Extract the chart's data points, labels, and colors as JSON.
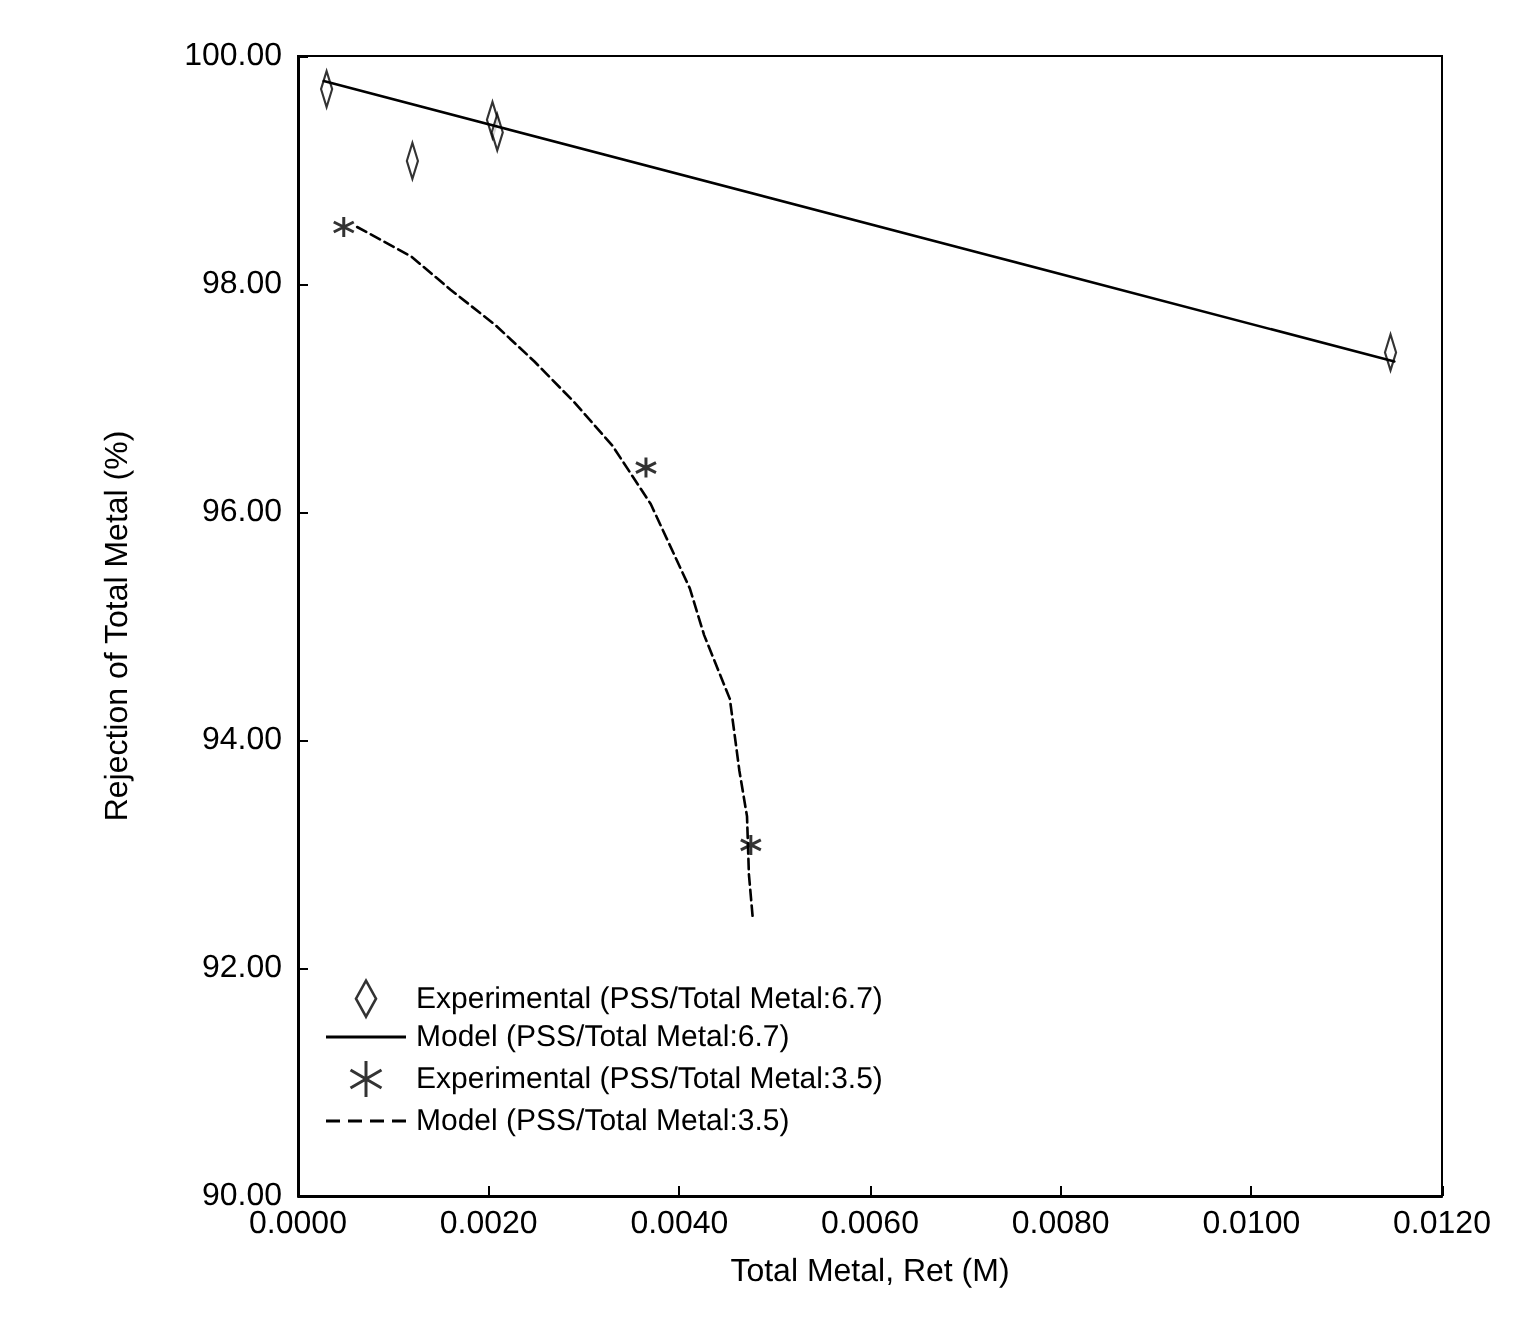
{
  "chart_data": {
    "type": "scatter",
    "xlabel": "Total Metal, Ret (M)",
    "ylabel": "Rejection of Total Metal (%)",
    "xlim": [
      0,
      0.012
    ],
    "ylim": [
      90,
      100
    ],
    "xticks": [
      {
        "value": 0,
        "label": "0.0000"
      },
      {
        "value": 0.002,
        "label": "0.0020"
      },
      {
        "value": 0.004,
        "label": "0.0040"
      },
      {
        "value": 0.006,
        "label": "0.0060"
      },
      {
        "value": 0.008,
        "label": "0.0080"
      },
      {
        "value": 0.01,
        "label": "0.0100"
      },
      {
        "value": 0.012,
        "label": "0.0120"
      }
    ],
    "yticks": [
      {
        "value": 90,
        "label": "90.00"
      },
      {
        "value": 92,
        "label": "92.00"
      },
      {
        "value": 94,
        "label": "94.00"
      },
      {
        "value": 96,
        "label": "96.00"
      },
      {
        "value": 98,
        "label": "98.00"
      },
      {
        "value": 100,
        "label": "100.00"
      }
    ],
    "grid": false,
    "legend": "bottom left",
    "series": [
      {
        "name": "Experimental (PSS/Total Metal:6.7)",
        "type": "scatter",
        "marker": "diamond",
        "color": "#000000",
        "x": [
          0.0003,
          0.0012,
          0.00204,
          0.00209,
          0.01146
        ],
        "values": [
          99.71,
          99.08,
          99.44,
          99.33,
          97.4
        ]
      },
      {
        "name": "Model (PSS/Total Metal:6.7)",
        "type": "line",
        "marker": "none",
        "line_style": "solid",
        "color": "#000000",
        "x": [
          0.00027,
          0.0115
        ],
        "values": [
          99.78,
          97.32
        ]
      },
      {
        "name": "Experimental (PSS/Total Metal:3.5)",
        "type": "scatter",
        "marker": "cross",
        "color": "#000000",
        "x": [
          0.00048,
          0.00365,
          0.00475
        ],
        "values": [
          98.5,
          96.39,
          93.08
        ]
      },
      {
        "name": "Model (PSS/Total Metal:3.5)",
        "type": "line",
        "marker": "none",
        "line_style": "dashed",
        "color": "#000000",
        "x": [
          0.00062,
          0.00119,
          0.0016,
          0.00207,
          0.00248,
          0.00289,
          0.0033,
          0.0037,
          0.00411,
          0.00426,
          0.00453,
          0.00463,
          0.00471,
          0.00473,
          0.00477
        ],
        "values": [
          98.5,
          98.24,
          97.95,
          97.64,
          97.32,
          96.97,
          96.58,
          96.07,
          95.33,
          94.92,
          94.36,
          93.73,
          93.33,
          92.82,
          92.44
        ]
      }
    ]
  }
}
